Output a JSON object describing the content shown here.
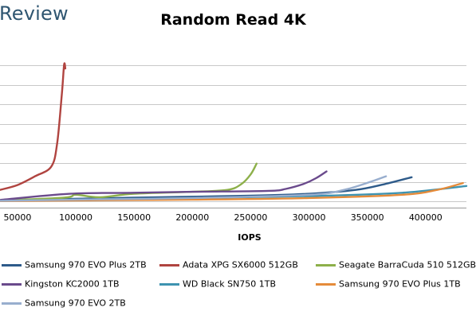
{
  "header": {
    "brand": "Review"
  },
  "chart_data": {
    "type": "line",
    "title": "Random Read 4K",
    "xlabel": "IOPS",
    "ylabel": "",
    "xlim": [
      35000,
      435000
    ],
    "ylim": [
      -0.15,
      8
    ],
    "x_ticks": [
      "50000",
      "100000",
      "150000",
      "200000",
      "250000",
      "300000",
      "350000",
      "400000"
    ],
    "y_tick_labels": [],
    "grid": "horizontal",
    "legend_position": "bottom",
    "series": [
      {
        "name": "Samsung 970 EVO Plus 2TB",
        "color": "#2e5b8a",
        "points": [
          [
            35000,
            0.05
          ],
          [
            80000,
            0.12
          ],
          [
            150000,
            0.2
          ],
          [
            250000,
            0.3
          ],
          [
            300000,
            0.4
          ],
          [
            340000,
            0.6
          ],
          [
            365000,
            0.9
          ],
          [
            388000,
            1.25
          ]
        ]
      },
      {
        "name": "Adata XPG SX6000 512GB",
        "color": "#b04440",
        "points": [
          [
            35000,
            0.6
          ],
          [
            50000,
            0.85
          ],
          [
            65000,
            1.3
          ],
          [
            79000,
            1.8
          ],
          [
            84000,
            3.0
          ],
          [
            88000,
            5.5
          ],
          [
            90000,
            7.05
          ],
          [
            91000,
            6.85
          ]
        ]
      },
      {
        "name": "Seagate BarraCuda 510 512GB",
        "color": "#8db04a",
        "points": [
          [
            35000,
            0.05
          ],
          [
            90000,
            0.2
          ],
          [
            100000,
            0.35
          ],
          [
            120000,
            0.22
          ],
          [
            150000,
            0.4
          ],
          [
            200000,
            0.5
          ],
          [
            230000,
            0.6
          ],
          [
            242000,
            0.9
          ],
          [
            250000,
            1.4
          ],
          [
            255000,
            1.95
          ]
        ]
      },
      {
        "name": "Kingston KC2000 1TB",
        "color": "#6a4a8c",
        "points": [
          [
            35000,
            0.08
          ],
          [
            95000,
            0.4
          ],
          [
            150000,
            0.45
          ],
          [
            200000,
            0.5
          ],
          [
            265000,
            0.55
          ],
          [
            280000,
            0.65
          ],
          [
            295000,
            0.9
          ],
          [
            306000,
            1.2
          ],
          [
            315000,
            1.55
          ]
        ]
      },
      {
        "name": "WD Black SN750 1TB",
        "color": "#3e93b0",
        "points": [
          [
            35000,
            0.03
          ],
          [
            100000,
            0.1
          ],
          [
            200000,
            0.18
          ],
          [
            300000,
            0.28
          ],
          [
            380000,
            0.45
          ],
          [
            435000,
            0.8
          ]
        ]
      },
      {
        "name": "Samsung 970 EVO Plus 1TB",
        "color": "#e58b3a",
        "points": [
          [
            35000,
            0.02
          ],
          [
            100000,
            0.06
          ],
          [
            200000,
            0.1
          ],
          [
            300000,
            0.18
          ],
          [
            380000,
            0.35
          ],
          [
            410000,
            0.6
          ],
          [
            432000,
            0.95
          ]
        ]
      },
      {
        "name": "Samsung 970 EVO 2TB",
        "color": "#98aece",
        "points": [
          [
            35000,
            0.04
          ],
          [
            100000,
            0.1
          ],
          [
            200000,
            0.18
          ],
          [
            300000,
            0.35
          ],
          [
            330000,
            0.6
          ],
          [
            352000,
            1.0
          ],
          [
            366000,
            1.3
          ]
        ]
      }
    ]
  }
}
